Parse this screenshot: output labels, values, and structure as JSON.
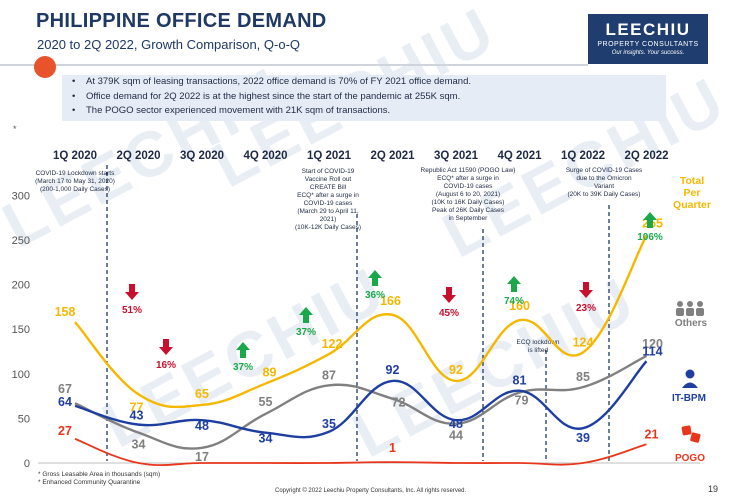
{
  "header": {
    "title": "PHILIPPINE OFFICE DEMAND",
    "subtitle": "2020 to 2Q 2022, Growth Comparison, Q-o-Q"
  },
  "logo": {
    "line1": "LEECHIU",
    "line2": "PROPERTY CONSULTANTS",
    "line3": "Our insights. Your success."
  },
  "watermark": "LEECHIU",
  "bullets": [
    "At 379K sqm of leasing transactions, 2022 office demand is 70% of FY 2021 office demand.",
    "Office demand for 2Q 2022 is at the highest since the start of the pandemic at 255K sqm.",
    "The POGO sector experienced movement with 21K sqm of transactions."
  ],
  "marker": "*",
  "colors": {
    "total": "#f5b800",
    "others": "#808080",
    "itbpm": "#1f3fa0",
    "pogo": "#e8361c",
    "up": "#1aa84a",
    "down": "#c8102e"
  },
  "chart_data": {
    "type": "line",
    "categories": [
      "1Q 2020",
      "2Q 2020",
      "3Q 2020",
      "4Q 2020",
      "1Q 2021",
      "2Q 2021",
      "3Q 2021",
      "4Q 2021",
      "1Q 2022",
      "2Q 2022"
    ],
    "ylim": [
      0,
      300
    ],
    "yticks": [
      "0",
      "50",
      "100",
      "150",
      "200",
      "250",
      "300"
    ],
    "series": [
      {
        "name": "Total Per Quarter",
        "values": [
          158,
          77,
          65,
          89,
          122,
          166,
          92,
          160,
          124,
          255
        ]
      },
      {
        "name": "Others",
        "values": [
          67,
          34,
          17,
          55,
          87,
          72,
          44,
          79,
          85,
          120
        ]
      },
      {
        "name": "IT-BPM",
        "values": [
          64,
          43,
          48,
          34,
          35,
          92,
          48,
          81,
          39,
          114
        ]
      },
      {
        "name": "POGO",
        "values": [
          27,
          0,
          0,
          0,
          0,
          1,
          0,
          0,
          0,
          21
        ]
      }
    ],
    "point_labels": {
      "Total Per Quarter": [
        "158",
        "77",
        "65",
        "89",
        "122",
        "166",
        "92",
        "160",
        "124",
        "255"
      ],
      "Others": [
        "67",
        "34",
        "17",
        "55",
        "87",
        "72",
        "44",
        "79",
        "85",
        "120"
      ],
      "IT-BPM": [
        "64",
        "43",
        "48",
        "34",
        "35",
        "92",
        "48",
        "81",
        "39",
        "114"
      ],
      "POGO": [
        "27",
        "",
        "",
        "",
        "",
        "1",
        "",
        "",
        "",
        "21"
      ]
    },
    "growth": [
      {
        "label": "51%",
        "dir": "down",
        "between": [
          0,
          1
        ]
      },
      {
        "label": "16%",
        "dir": "down",
        "between": [
          1,
          2
        ]
      },
      {
        "label": "37%",
        "dir": "up",
        "between": [
          2,
          3
        ]
      },
      {
        "label": "37%",
        "dir": "up",
        "between": [
          3,
          4
        ]
      },
      {
        "label": "36%",
        "dir": "up",
        "between": [
          4,
          5
        ]
      },
      {
        "label": "45%",
        "dir": "down",
        "between": [
          5,
          6
        ]
      },
      {
        "label": "74%",
        "dir": "up",
        "between": [
          6,
          7
        ]
      },
      {
        "label": "23%",
        "dir": "down",
        "between": [
          7,
          8
        ]
      },
      {
        "label": "106%",
        "dir": "up",
        "between": [
          8,
          9
        ]
      }
    ],
    "legend": {
      "total_line1": "Total",
      "total_line2": "Per",
      "total_line3": "Quarter",
      "others": "Others",
      "itbpm": "IT-BPM",
      "pogo": "POGO"
    },
    "annotations": [
      {
        "lines": [
          "COVID-19 Lockdown starts",
          "(March 17 to May 31, 2020)",
          "(200-1,000 Daily Cases)"
        ]
      },
      {
        "lines": [
          "Start of COVID-19",
          "Vaccine Roll out",
          "CREATE Bill",
          "ECQ* after a surge in",
          "COVID-19 cases",
          "(March 29 to April 11,",
          "2021)",
          "(10K-12K Daily Cases)"
        ]
      },
      {
        "lines": [
          "Republic Act 11590 (POGO Law)",
          "ECQ* after a surge in",
          "COVID-19 cases",
          "(August 6 to 20, 2021)",
          "(10K to 16K Daily Cases)",
          "Peak of 26K Daily Cases",
          "in September"
        ]
      },
      {
        "lines": [
          "ECQ lockdown",
          "is lifted"
        ]
      },
      {
        "lines": [
          "Surge of COVID-19 Cases",
          "due to the Omicron",
          "Variant",
          "(20K to 39K Daily Cases)"
        ]
      }
    ]
  },
  "footnotes": [
    "Gross Leasable Area in thousands (sqm)",
    "Enhanced Community Quarantine"
  ],
  "copyright": "Copyright © 2022 Leechiu Property Consultants, Inc. All rights reserved.",
  "page_number": "19"
}
